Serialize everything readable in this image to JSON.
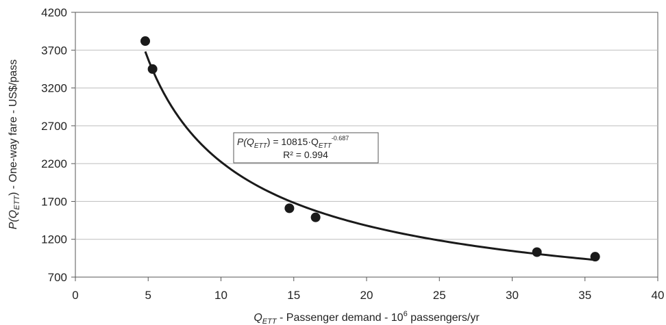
{
  "chart_data": {
    "type": "scatter",
    "xlim": [
      0,
      40
    ],
    "ylim": [
      700,
      4200
    ],
    "x_ticks": [
      "0",
      "5",
      "10",
      "15",
      "20",
      "25",
      "30",
      "35",
      "40"
    ],
    "y_ticks": [
      "700",
      "1200",
      "1700",
      "2200",
      "2700",
      "3200",
      "3700",
      "4200"
    ],
    "grid": "horizontal",
    "xlabel": {
      "main": "Q",
      "sub": "ETT",
      "mid": " - Passenger demand - 10",
      "sup": "6",
      "tail": " passengers/yr"
    },
    "ylabel": {
      "pre": "P(Q",
      "sub": "ETT",
      "tail": ") - One-way fare - US$/pass"
    },
    "points": [
      {
        "x": 4.8,
        "y": 3820
      },
      {
        "x": 5.3,
        "y": 3450
      },
      {
        "x": 14.7,
        "y": 1610
      },
      {
        "x": 16.5,
        "y": 1490
      },
      {
        "x": 31.7,
        "y": 1030
      },
      {
        "x": 35.7,
        "y": 970
      }
    ],
    "trendline": {
      "type": "power",
      "coefficient": 10815,
      "exponent": -0.687,
      "x_range": [
        4.8,
        35.7
      ]
    },
    "annotation": {
      "eq_pre": "P(Q",
      "eq_sub1": "ETT",
      "eq_mid": ") = 10815·Q",
      "eq_sub2": "ETT",
      "eq_sup": "-0.687",
      "r2": "R² = 0.994"
    },
    "colors": {
      "points": "#1a1a1a",
      "line": "#1a1a1a",
      "grid": "#bdbdbd",
      "axis": "#555555"
    }
  }
}
